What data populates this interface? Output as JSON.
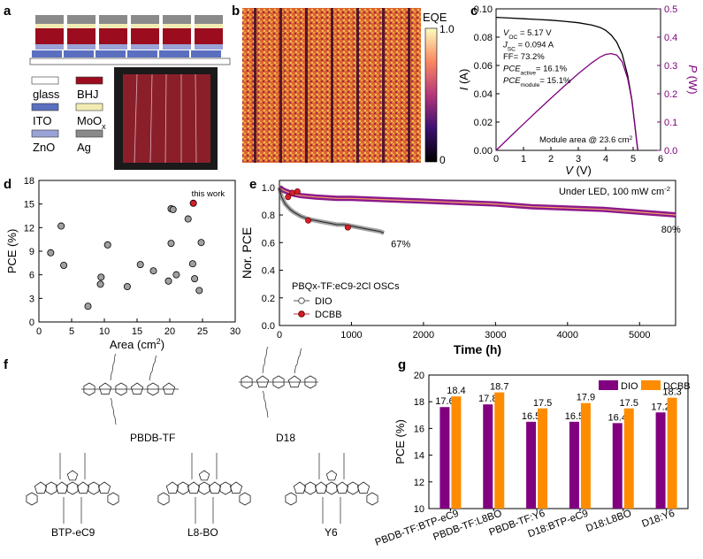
{
  "panel_labels": {
    "a": "a",
    "b": "b",
    "c": "c",
    "d": "d",
    "e": "e",
    "f": "f",
    "g": "g"
  },
  "colors": {
    "bhj": "#9b0d1e",
    "ito": "#5a6fbf",
    "moox": "#f2ecb4",
    "zno": "#9aa3d6",
    "ag": "#8a8a8a",
    "purple": "#800080",
    "orange": "#ff8c00",
    "red_point": "#d21f2a"
  },
  "panel_a": {
    "legend": [
      {
        "label": "glass",
        "swatch": "#ffffff"
      },
      {
        "label": "BHJ",
        "swatch": "#9b0d1e"
      },
      {
        "label": "ITO",
        "swatch": "#5a6fbf"
      },
      {
        "label": "MoOx_base",
        "swatch": "#f2ecb4"
      },
      {
        "label": "ZnO",
        "swatch": "#9aa3d6"
      },
      {
        "label": "Ag",
        "swatch": "#8a8a8a"
      }
    ],
    "moox_base": "MoO",
    "moox_sub": "x"
  },
  "panel_b": {
    "colorbar_title": "EQE",
    "cb_max": "1.0",
    "cb_min": "0"
  },
  "chart_data": [
    {
      "id": "c",
      "type": "line",
      "xlabel": "V (V)",
      "ylabel_left": "I (A)",
      "ylabel_right": "P (W)",
      "xlim": [
        0,
        6
      ],
      "ylim_left": [
        0,
        0.1
      ],
      "ylim_right": [
        0,
        0.5
      ],
      "xticks": [
        "0",
        "1",
        "2",
        "3",
        "4",
        "5",
        "6"
      ],
      "yticks_left": [
        "0.00",
        "0.02",
        "0.04",
        "0.06",
        "0.08",
        "0.10"
      ],
      "yticks_right": [
        "0.0",
        "0.1",
        "0.2",
        "0.3",
        "0.4",
        "0.5"
      ],
      "series": [
        {
          "axis": "left",
          "color": "#000000",
          "x": [
            0,
            0.5,
            1,
            1.5,
            2,
            2.5,
            3,
            3.5,
            3.8,
            4.0,
            4.2,
            4.4,
            4.6,
            4.8,
            4.95,
            5.05,
            5.12,
            5.17
          ],
          "y": [
            0.094,
            0.0935,
            0.093,
            0.0925,
            0.092,
            0.0912,
            0.0902,
            0.0885,
            0.0868,
            0.0848,
            0.0815,
            0.0765,
            0.068,
            0.053,
            0.036,
            0.02,
            0.008,
            0.0
          ]
        },
        {
          "axis": "right",
          "color": "#800080",
          "x": [
            0,
            0.5,
            1,
            1.5,
            2,
            2.5,
            3,
            3.5,
            3.8,
            4.0,
            4.2,
            4.4,
            4.6,
            4.8,
            4.95,
            5.05,
            5.12,
            5.17
          ],
          "y": [
            0,
            0.047,
            0.093,
            0.139,
            0.184,
            0.228,
            0.271,
            0.31,
            0.33,
            0.339,
            0.342,
            0.337,
            0.313,
            0.254,
            0.178,
            0.101,
            0.041,
            0.0
          ]
        }
      ],
      "annotations": [
        {
          "main": "V",
          "sub": "OC",
          "rest": " = 5.17 V"
        },
        {
          "main": "J",
          "sub": "SC",
          "rest": " = 0.094 A"
        },
        {
          "main": "FF= 73.2%",
          "sub": "",
          "rest": ""
        },
        {
          "main": "PCE",
          "sub": "active",
          "rest": "= 16.1%"
        },
        {
          "main": "PCE",
          "sub": "module",
          "rest": "= 15.1%"
        }
      ],
      "module_area_main": "Module area @ 23.6 cm",
      "module_area_sup": "2"
    },
    {
      "id": "d",
      "type": "scatter",
      "xlabel_main": "Area (cm",
      "xlabel_sup": "2",
      "xlabel_end": ")",
      "ylabel": "PCE (%)",
      "xlim": [
        0,
        30
      ],
      "ylim": [
        0,
        18
      ],
      "xticks": [
        "0",
        "5",
        "10",
        "15",
        "20",
        "25",
        "30"
      ],
      "yticks": [
        "0",
        "3",
        "6",
        "9",
        "12",
        "15",
        "18"
      ],
      "points_x": [
        1.8,
        3.4,
        3.8,
        7.5,
        9.4,
        9.5,
        10.5,
        13.5,
        15.5,
        17.5,
        19.8,
        20.2,
        20.2,
        20.5,
        21.0,
        22.8,
        23.5,
        24.5,
        24.8,
        23.8
      ],
      "points_y": [
        8.8,
        12.2,
        7.2,
        2.0,
        4.8,
        5.7,
        9.8,
        4.5,
        7.3,
        6.5,
        5.2,
        10.0,
        14.4,
        14.3,
        6.0,
        13.1,
        7.4,
        4.0,
        10.1,
        5.5
      ],
      "highlight": {
        "x": 23.6,
        "y": 15.1,
        "label": "this work"
      }
    },
    {
      "id": "e",
      "type": "line",
      "xlabel": "Time (h)",
      "ylabel": "Nor. PCE",
      "xlim": [
        0,
        5500
      ],
      "ylim": [
        0,
        1.05
      ],
      "xticks": [
        "0",
        "1000",
        "2000",
        "3000",
        "4000",
        "5000"
      ],
      "yticks": [
        "0.0",
        "0.2",
        "0.4",
        "0.6",
        "0.8",
        "1.0"
      ],
      "title": "Under LED, 100 mW cm",
      "title_sup": "-2",
      "legend_title": "PBQx-TF:eC9-2Cl OSCs",
      "series": [
        {
          "name": "DIO",
          "color": "#808080",
          "x": [
            0,
            30,
            80,
            150,
            200,
            300,
            400,
            500,
            600,
            700,
            800,
            900,
            1000,
            1100,
            1200,
            1300,
            1400,
            1450
          ],
          "y": [
            1.0,
            0.93,
            0.88,
            0.84,
            0.82,
            0.79,
            0.77,
            0.76,
            0.75,
            0.74,
            0.73,
            0.73,
            0.72,
            0.71,
            0.7,
            0.69,
            0.68,
            0.67
          ]
        },
        {
          "name": "DCBB",
          "color": "#800080",
          "x": [
            0,
            50,
            100,
            200,
            300,
            500,
            800,
            1000,
            1500,
            2000,
            2500,
            3000,
            3500,
            4000,
            4500,
            5000,
            5500
          ],
          "y": [
            1.0,
            0.98,
            0.97,
            0.95,
            0.94,
            0.93,
            0.92,
            0.92,
            0.91,
            0.9,
            0.89,
            0.88,
            0.86,
            0.85,
            0.84,
            0.82,
            0.8
          ]
        }
      ],
      "end_labels": [
        "67%",
        "80%"
      ]
    },
    {
      "id": "g",
      "type": "bar",
      "ylabel": "PCE (%)",
      "ylim": [
        10,
        20
      ],
      "yticks": [
        "10",
        "12",
        "14",
        "16",
        "18",
        "20"
      ],
      "categories": [
        "PBDB-TF:BTP-eC9",
        "PBDB-TF:L8BO",
        "PBDB-TF:Y6",
        "D18:BTP-eC9",
        "D18:L8BO",
        "D18:Y6"
      ],
      "series": [
        {
          "name": "DIO",
          "color": "#800080",
          "values": [
            17.6,
            17.8,
            16.5,
            16.5,
            16.4,
            17.2
          ]
        },
        {
          "name": "DCBB",
          "color": "#ff8c00",
          "values": [
            18.4,
            18.7,
            17.5,
            17.9,
            17.5,
            18.3
          ]
        }
      ]
    }
  ],
  "panel_f": {
    "labels": [
      "PBDB-TF",
      "D18",
      "BTP-eC9",
      "L8-BO",
      "Y6"
    ]
  }
}
